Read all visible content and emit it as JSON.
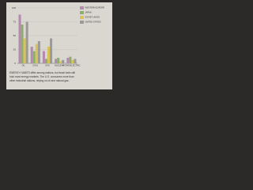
{
  "chart_data": {
    "type": "bar",
    "categories": [
      "OIL",
      "COAL",
      "GAS",
      "NUCLEAR",
      "HYDROELECTRIC"
    ],
    "series": [
      {
        "name": "WESTERN EUROPE",
        "color": "#b48bb0",
        "values": [
          88,
          30,
          22,
          8,
          10
        ]
      },
      {
        "name": "JAPAN",
        "color": "#8fae6e",
        "values": [
          70,
          22,
          8,
          10,
          12
        ]
      },
      {
        "name": "SOVIET UNION",
        "color": "#d7c35a",
        "values": [
          45,
          35,
          30,
          4,
          6
        ]
      },
      {
        "name": "UNITED STATES",
        "color": "#9a9a9a",
        "values": [
          75,
          40,
          45,
          6,
          8
        ]
      }
    ],
    "ylim": [
      0,
      100
    ],
    "yticks": [
      0,
      25,
      50,
      75,
      100
    ],
    "grid": true,
    "caption_lines": [
      "ENERGY HABITS differ among nations, but fossil fuels still",
      "hold most energy markets. The U.S. consumes more than",
      "other industrial nations, relying on oil and natural gas."
    ]
  }
}
